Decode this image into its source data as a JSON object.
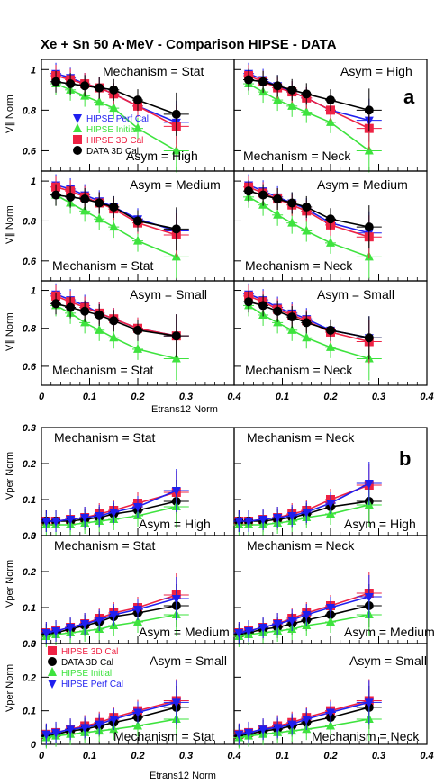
{
  "title": "Xe + Sn  50 A·MeV - Comparison HIPSE - DATA",
  "section_labels": {
    "a": "a",
    "b": "b"
  },
  "axis_labels": {
    "top_x": "Etrans12 Norm",
    "bottom_x": "Etrans12 Norm",
    "top_y": "V∥ Norm",
    "bottom_y": "Vper Norm"
  },
  "colors": {
    "HIPSE Perf Cal": "#1f1fef",
    "HIPSE Initial": "#3ee33e",
    "HIPSE 3D Cal": "#ee2244",
    "DATA 3D Cal": "#000000"
  },
  "legend_top": [
    "HIPSE Perf Cal",
    "HIPSE Initial",
    "HIPSE 3D Cal",
    "DATA 3D Cal"
  ],
  "legend_bottom": [
    "HIPSE 3D Cal",
    "DATA 3D Cal",
    "HIPSE Initial",
    "HIPSE Perf Cal"
  ],
  "chart_data": [
    {
      "type": "scatter",
      "title": "Xe + Sn  50 A·MeV - Comparison HIPSE - DATA",
      "section": "a",
      "xlabel": "Etrans12 Norm",
      "ylabel": "V∥ Norm",
      "xlim": [
        0,
        0.4
      ],
      "ylim": [
        0.5,
        1.05
      ],
      "xticks": [
        "0",
        "0.1",
        "0.2",
        "0.3",
        "0.4"
      ],
      "yticks": [
        "0.6",
        "0.8",
        "1"
      ],
      "x": [
        0.03,
        0.06,
        0.09,
        0.12,
        0.15,
        0.2,
        0.28
      ],
      "panels": [
        {
          "annotations": [
            "Mechanism = Stat",
            "Asym = High"
          ],
          "series": [
            {
              "name": "HIPSE Perf Cal",
              "values": [
                0.98,
                0.96,
                0.93,
                0.91,
                0.88,
                0.82,
                0.74
              ]
            },
            {
              "name": "HIPSE Initial",
              "values": [
                0.93,
                0.9,
                0.87,
                0.84,
                0.81,
                0.71,
                0.6
              ]
            },
            {
              "name": "HIPSE 3D Cal",
              "values": [
                0.97,
                0.95,
                0.93,
                0.91,
                0.88,
                0.82,
                0.72
              ]
            },
            {
              "name": "DATA 3D Cal",
              "values": [
                0.94,
                0.93,
                0.92,
                0.91,
                0.9,
                0.85,
                0.78
              ]
            }
          ]
        },
        {
          "annotations": [
            "Asym = High",
            "Mechanism = Neck"
          ],
          "series": [
            {
              "name": "HIPSE Perf Cal",
              "values": [
                0.98,
                0.95,
                0.92,
                0.89,
                0.86,
                0.8,
                0.75
              ]
            },
            {
              "name": "HIPSE Initial",
              "values": [
                0.93,
                0.89,
                0.85,
                0.82,
                0.79,
                0.74,
                0.6
              ]
            },
            {
              "name": "HIPSE 3D Cal",
              "values": [
                0.97,
                0.94,
                0.91,
                0.89,
                0.86,
                0.8,
                0.71
              ]
            },
            {
              "name": "DATA 3D Cal",
              "values": [
                0.95,
                0.94,
                0.92,
                0.9,
                0.88,
                0.85,
                0.8
              ]
            }
          ]
        },
        {
          "annotations": [
            "Asym = Medium",
            "Mechanism = Stat"
          ],
          "series": [
            {
              "name": "HIPSE Perf Cal",
              "values": [
                0.98,
                0.96,
                0.93,
                0.9,
                0.87,
                0.81,
                0.75
              ]
            },
            {
              "name": "HIPSE Initial",
              "values": [
                0.93,
                0.89,
                0.85,
                0.81,
                0.77,
                0.7,
                0.62
              ]
            },
            {
              "name": "HIPSE 3D Cal",
              "values": [
                0.97,
                0.95,
                0.92,
                0.89,
                0.86,
                0.79,
                0.73
              ]
            },
            {
              "name": "DATA 3D Cal",
              "values": [
                0.93,
                0.92,
                0.91,
                0.89,
                0.87,
                0.8,
                0.76
              ]
            }
          ]
        },
        {
          "annotations": [
            "Asym = Medium",
            "Mechanism = Neck"
          ],
          "series": [
            {
              "name": "HIPSE Perf Cal",
              "values": [
                0.98,
                0.95,
                0.92,
                0.89,
                0.86,
                0.79,
                0.74
              ]
            },
            {
              "name": "HIPSE Initial",
              "values": [
                0.92,
                0.88,
                0.83,
                0.79,
                0.75,
                0.69,
                0.62
              ]
            },
            {
              "name": "HIPSE 3D Cal",
              "values": [
                0.97,
                0.94,
                0.91,
                0.88,
                0.85,
                0.78,
                0.72
              ]
            },
            {
              "name": "DATA 3D Cal",
              "values": [
                0.95,
                0.93,
                0.91,
                0.89,
                0.87,
                0.81,
                0.77
              ]
            }
          ]
        },
        {
          "annotations": [
            "Asym = Small",
            "Mechanism = Stat"
          ],
          "series": [
            {
              "name": "HIPSE Perf Cal",
              "values": [
                0.98,
                0.95,
                0.92,
                0.88,
                0.85,
                0.8,
                0.76
              ]
            },
            {
              "name": "HIPSE Initial",
              "values": [
                0.92,
                0.88,
                0.83,
                0.79,
                0.75,
                0.69,
                0.64
              ]
            },
            {
              "name": "HIPSE 3D Cal",
              "values": [
                0.97,
                0.94,
                0.91,
                0.88,
                0.85,
                0.8,
                0.76
              ]
            },
            {
              "name": "DATA 3D Cal",
              "values": [
                0.93,
                0.91,
                0.89,
                0.87,
                0.84,
                0.79,
                0.76
              ]
            }
          ]
        },
        {
          "annotations": [
            "Asym = Small",
            "Mechanism = Neck"
          ],
          "series": [
            {
              "name": "HIPSE Perf Cal",
              "values": [
                0.98,
                0.95,
                0.91,
                0.88,
                0.85,
                0.79,
                0.75
              ]
            },
            {
              "name": "HIPSE Initial",
              "values": [
                0.92,
                0.87,
                0.83,
                0.79,
                0.75,
                0.7,
                0.64
              ]
            },
            {
              "name": "HIPSE 3D Cal",
              "values": [
                0.97,
                0.94,
                0.9,
                0.87,
                0.84,
                0.78,
                0.73
              ]
            },
            {
              "name": "DATA 3D Cal",
              "values": [
                0.94,
                0.92,
                0.89,
                0.86,
                0.83,
                0.79,
                0.75
              ]
            }
          ]
        }
      ]
    },
    {
      "type": "scatter",
      "section": "b",
      "xlabel": "Etrans12 Norm",
      "ylabel": "Vper Norm",
      "xlim": [
        0,
        0.4
      ],
      "ylim": [
        0,
        0.3
      ],
      "xticks": [
        "0",
        "0.1",
        "0.2",
        "0.3",
        "0.4"
      ],
      "yticks": [
        "0",
        "0.1",
        "0.2",
        "0.3"
      ],
      "x": [
        0.01,
        0.03,
        0.06,
        0.09,
        0.12,
        0.15,
        0.2,
        0.28
      ],
      "panels": [
        {
          "annotations": [
            "Mechanism = Stat",
            "Asym = High"
          ],
          "series": [
            {
              "name": "HIPSE 3D Cal",
              "values": [
                0.04,
                0.04,
                0.045,
                0.05,
                0.06,
                0.07,
                0.09,
                0.12
              ]
            },
            {
              "name": "DATA 3D Cal",
              "values": [
                0.04,
                0.04,
                0.04,
                0.045,
                0.05,
                0.06,
                0.07,
                0.095
              ]
            },
            {
              "name": "HIPSE Initial",
              "values": [
                0.03,
                0.03,
                0.03,
                0.035,
                0.04,
                0.045,
                0.055,
                0.08
              ]
            },
            {
              "name": "HIPSE Perf Cal",
              "values": [
                0.04,
                0.04,
                0.045,
                0.05,
                0.055,
                0.065,
                0.08,
                0.125
              ]
            }
          ]
        },
        {
          "annotations": [
            "Mechanism = Neck",
            "Asym = High"
          ],
          "series": [
            {
              "name": "HIPSE 3D Cal",
              "values": [
                0.04,
                0.04,
                0.045,
                0.05,
                0.06,
                0.07,
                0.1,
                0.14
              ]
            },
            {
              "name": "DATA 3D Cal",
              "values": [
                0.04,
                0.04,
                0.04,
                0.045,
                0.05,
                0.06,
                0.08,
                0.095
              ]
            },
            {
              "name": "HIPSE Initial",
              "values": [
                0.03,
                0.03,
                0.03,
                0.035,
                0.04,
                0.05,
                0.06,
                0.085
              ]
            },
            {
              "name": "HIPSE Perf Cal",
              "values": [
                0.04,
                0.04,
                0.045,
                0.05,
                0.055,
                0.065,
                0.09,
                0.145
              ]
            }
          ]
        },
        {
          "annotations": [
            "Mechanism = Stat",
            "Asym = Medium"
          ],
          "series": [
            {
              "name": "HIPSE 3D Cal",
              "values": [
                0.03,
                0.035,
                0.045,
                0.055,
                0.07,
                0.085,
                0.1,
                0.135
              ]
            },
            {
              "name": "DATA 3D Cal",
              "values": [
                0.025,
                0.03,
                0.04,
                0.05,
                0.06,
                0.075,
                0.085,
                0.105
              ]
            },
            {
              "name": "HIPSE Initial",
              "values": [
                0.02,
                0.025,
                0.03,
                0.035,
                0.04,
                0.05,
                0.06,
                0.08
              ]
            },
            {
              "name": "HIPSE Perf Cal",
              "values": [
                0.03,
                0.035,
                0.045,
                0.055,
                0.065,
                0.08,
                0.095,
                0.125
              ]
            }
          ]
        },
        {
          "annotations": [
            "Mechanism = Neck",
            "Asym = Medium"
          ],
          "series": [
            {
              "name": "HIPSE 3D Cal",
              "values": [
                0.03,
                0.035,
                0.045,
                0.055,
                0.07,
                0.085,
                0.105,
                0.14
              ]
            },
            {
              "name": "DATA 3D Cal",
              "values": [
                0.025,
                0.03,
                0.04,
                0.045,
                0.055,
                0.065,
                0.08,
                0.105
              ]
            },
            {
              "name": "HIPSE Initial",
              "values": [
                0.02,
                0.025,
                0.03,
                0.035,
                0.04,
                0.05,
                0.06,
                0.08
              ]
            },
            {
              "name": "HIPSE Perf Cal",
              "values": [
                0.03,
                0.035,
                0.045,
                0.055,
                0.065,
                0.08,
                0.1,
                0.13
              ]
            }
          ]
        },
        {
          "annotations": [
            "Asym = Small",
            "Mechanism = Stat"
          ],
          "series": [
            {
              "name": "HIPSE 3D Cal",
              "values": [
                0.03,
                0.035,
                0.045,
                0.055,
                0.065,
                0.08,
                0.1,
                0.13
              ]
            },
            {
              "name": "DATA 3D Cal",
              "values": [
                0.025,
                0.03,
                0.04,
                0.045,
                0.055,
                0.065,
                0.08,
                0.11
              ]
            },
            {
              "name": "HIPSE Initial",
              "values": [
                0.02,
                0.025,
                0.03,
                0.035,
                0.04,
                0.045,
                0.055,
                0.075
              ]
            },
            {
              "name": "HIPSE Perf Cal",
              "values": [
                0.03,
                0.035,
                0.045,
                0.05,
                0.06,
                0.075,
                0.095,
                0.125
              ]
            }
          ]
        },
        {
          "annotations": [
            "Asym = Small",
            "Mechanism = Neck"
          ],
          "series": [
            {
              "name": "HIPSE 3D Cal",
              "values": [
                0.03,
                0.035,
                0.045,
                0.055,
                0.065,
                0.08,
                0.1,
                0.13
              ]
            },
            {
              "name": "DATA 3D Cal",
              "values": [
                0.025,
                0.03,
                0.04,
                0.045,
                0.055,
                0.065,
                0.08,
                0.11
              ]
            },
            {
              "name": "HIPSE Initial",
              "values": [
                0.02,
                0.025,
                0.03,
                0.035,
                0.04,
                0.045,
                0.055,
                0.075
              ]
            },
            {
              "name": "HIPSE Perf Cal",
              "values": [
                0.03,
                0.035,
                0.045,
                0.05,
                0.06,
                0.075,
                0.095,
                0.125
              ]
            }
          ]
        }
      ]
    }
  ]
}
